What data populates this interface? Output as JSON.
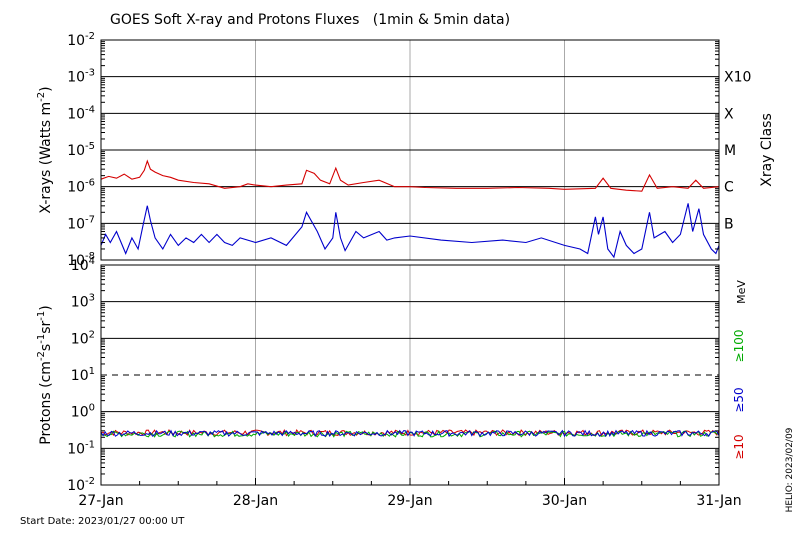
{
  "title": "GOES Soft X-ray and Protons Fluxes   (1min & 5min data)",
  "start_date": "Start Date: 2023/01/27 00:00 UT",
  "stamp": "HELIO: 2023/02/09",
  "chart_data": [
    {
      "type": "line",
      "panel": "xray",
      "ylabel": "X-rays (Watts m^-2)",
      "ylabel_main": "X-rays (Watts m",
      "ylabel_sup": "-2",
      "ylabel_close": ")",
      "yscale": "log",
      "ylim": [
        1e-08,
        0.01
      ],
      "xlim_days": [
        0,
        4
      ],
      "y_ticks": [
        {
          "exp": -2,
          "value": 0.01
        },
        {
          "exp": -3,
          "value": 0.001
        },
        {
          "exp": -4,
          "value": 0.0001
        },
        {
          "exp": -5,
          "value": 1e-05
        },
        {
          "exp": -6,
          "value": 1e-06
        },
        {
          "exp": -7,
          "value": 1e-07
        },
        {
          "exp": -8,
          "value": 1e-08
        }
      ],
      "right_label": "Xray Class",
      "class_labels": [
        {
          "label": "X10",
          "value": 0.001
        },
        {
          "label": "X",
          "value": 0.0001
        },
        {
          "label": "M",
          "value": 1e-05
        },
        {
          "label": "C",
          "value": 1e-06
        },
        {
          "label": "B",
          "value": 1e-07
        }
      ],
      "series": [
        {
          "color": "#d40000",
          "points": [
            [
              0.0,
              1.6e-06
            ],
            [
              0.05,
              1.9e-06
            ],
            [
              0.1,
              1.7e-06
            ],
            [
              0.15,
              2.2e-06
            ],
            [
              0.2,
              1.6e-06
            ],
            [
              0.25,
              1.8e-06
            ],
            [
              0.28,
              2.8e-06
            ],
            [
              0.3,
              5e-06
            ],
            [
              0.32,
              3e-06
            ],
            [
              0.35,
              2.5e-06
            ],
            [
              0.4,
              2e-06
            ],
            [
              0.45,
              1.8e-06
            ],
            [
              0.5,
              1.5e-06
            ],
            [
              0.6,
              1.3e-06
            ],
            [
              0.7,
              1.2e-06
            ],
            [
              0.8,
              9e-07
            ],
            [
              0.9,
              1e-06
            ],
            [
              0.95,
              1.2e-06
            ],
            [
              1.0,
              1.1e-06
            ],
            [
              1.1,
              1e-06
            ],
            [
              1.2,
              1.1e-06
            ],
            [
              1.3,
              1.2e-06
            ],
            [
              1.33,
              2.8e-06
            ],
            [
              1.38,
              2.3e-06
            ],
            [
              1.42,
              1.5e-06
            ],
            [
              1.48,
              1.2e-06
            ],
            [
              1.52,
              3.2e-06
            ],
            [
              1.55,
              1.5e-06
            ],
            [
              1.6,
              1.1e-06
            ],
            [
              1.7,
              1.3e-06
            ],
            [
              1.8,
              1.5e-06
            ],
            [
              1.9,
              1e-06
            ],
            [
              2.0,
              1e-06
            ],
            [
              2.1,
              9.5e-07
            ],
            [
              2.3,
              9e-07
            ],
            [
              2.5,
              9e-07
            ],
            [
              2.7,
              9.5e-07
            ],
            [
              2.9,
              9e-07
            ],
            [
              3.0,
              8.5e-07
            ],
            [
              3.2,
              9e-07
            ],
            [
              3.25,
              1.7e-06
            ],
            [
              3.3,
              9e-07
            ],
            [
              3.4,
              8e-07
            ],
            [
              3.5,
              7.5e-07
            ],
            [
              3.55,
              2.1e-06
            ],
            [
              3.6,
              9e-07
            ],
            [
              3.7,
              1e-06
            ],
            [
              3.8,
              9e-07
            ],
            [
              3.85,
              1.5e-06
            ],
            [
              3.9,
              9e-07
            ],
            [
              4.0,
              1e-06
            ]
          ]
        },
        {
          "color": "#0000cc",
          "points": [
            [
              0.0,
              2.5e-08
            ],
            [
              0.03,
              5e-08
            ],
            [
              0.06,
              3e-08
            ],
            [
              0.1,
              6e-08
            ],
            [
              0.13,
              3e-08
            ],
            [
              0.16,
              1.5e-08
            ],
            [
              0.2,
              4e-08
            ],
            [
              0.24,
              2e-08
            ],
            [
              0.27,
              8e-08
            ],
            [
              0.3,
              3e-07
            ],
            [
              0.32,
              1.2e-07
            ],
            [
              0.35,
              4e-08
            ],
            [
              0.4,
              2e-08
            ],
            [
              0.45,
              5e-08
            ],
            [
              0.5,
              2.5e-08
            ],
            [
              0.55,
              4e-08
            ],
            [
              0.6,
              3e-08
            ],
            [
              0.65,
              5e-08
            ],
            [
              0.7,
              3e-08
            ],
            [
              0.75,
              5e-08
            ],
            [
              0.8,
              3e-08
            ],
            [
              0.85,
              2.5e-08
            ],
            [
              0.9,
              4e-08
            ],
            [
              1.0,
              3e-08
            ],
            [
              1.1,
              4e-08
            ],
            [
              1.2,
              2.5e-08
            ],
            [
              1.3,
              8e-08
            ],
            [
              1.33,
              2e-07
            ],
            [
              1.4,
              6e-08
            ],
            [
              1.45,
              2e-08
            ],
            [
              1.5,
              4e-08
            ],
            [
              1.52,
              2e-07
            ],
            [
              1.55,
              4e-08
            ],
            [
              1.58,
              1.8e-08
            ],
            [
              1.65,
              6e-08
            ],
            [
              1.7,
              4e-08
            ],
            [
              1.8,
              6e-08
            ],
            [
              1.85,
              3.5e-08
            ],
            [
              1.9,
              4e-08
            ],
            [
              2.0,
              4.5e-08
            ],
            [
              2.2,
              3.5e-08
            ],
            [
              2.4,
              3e-08
            ],
            [
              2.6,
              3.5e-08
            ],
            [
              2.75,
              3e-08
            ],
            [
              2.85,
              4e-08
            ],
            [
              3.0,
              2.5e-08
            ],
            [
              3.1,
              2e-08
            ],
            [
              3.15,
              1.5e-08
            ],
            [
              3.2,
              1.5e-07
            ],
            [
              3.22,
              5e-08
            ],
            [
              3.25,
              1.5e-07
            ],
            [
              3.28,
              2e-08
            ],
            [
              3.32,
              1.2e-08
            ],
            [
              3.36,
              6e-08
            ],
            [
              3.4,
              2.5e-08
            ],
            [
              3.45,
              1.5e-08
            ],
            [
              3.5,
              2e-08
            ],
            [
              3.55,
              2e-07
            ],
            [
              3.58,
              4e-08
            ],
            [
              3.65,
              6e-08
            ],
            [
              3.7,
              3e-08
            ],
            [
              3.75,
              5e-08
            ],
            [
              3.8,
              3.5e-07
            ],
            [
              3.83,
              6e-08
            ],
            [
              3.87,
              2.5e-07
            ],
            [
              3.9,
              5e-08
            ],
            [
              3.95,
              2e-08
            ],
            [
              3.98,
              1.5e-08
            ],
            [
              4.0,
              2.5e-08
            ]
          ]
        }
      ]
    },
    {
      "type": "line",
      "panel": "protons",
      "ylabel": "Protons (cm^-2 s^-1 sr^-1)",
      "ylabel_main": "Protons (cm",
      "ylabel_sup1": "-2",
      "ylabel_mid1": "s",
      "ylabel_sup2": "-1",
      "ylabel_mid2": "sr",
      "ylabel_sup3": "-1",
      "ylabel_close": ")",
      "yscale": "log",
      "ylim": [
        0.01,
        10000
      ],
      "xlim_days": [
        0,
        4
      ],
      "y_ticks": [
        {
          "base": "10",
          "exp": "4",
          "value": 10000
        },
        {
          "base": "10",
          "exp": "3",
          "value": 1000
        },
        {
          "base": "10",
          "exp": "2",
          "value": 100
        },
        {
          "base": "10",
          "exp": "1",
          "value": 10
        },
        {
          "base": "10",
          "exp": "0",
          "value": 1
        },
        {
          "base": "10",
          "exp": "-1",
          "value": 0.1
        },
        {
          "base": "10",
          "exp": "-2",
          "value": 0.01
        }
      ],
      "threshold_line": 10,
      "unit_label": "MeV",
      "legend": [
        {
          "name": "≥100",
          "color": "#00aa00"
        },
        {
          "name": "≥50",
          "color": "#0000cc"
        },
        {
          "name": "≥10",
          "color": "#d40000"
        }
      ],
      "series": [
        {
          "name": "≥10",
          "color": "#d40000",
          "level": 0.27
        },
        {
          "name": "≥100",
          "color": "#00aa00",
          "level": 0.25
        },
        {
          "name": "≥50",
          "color": "#0000cc",
          "level": 0.26
        }
      ],
      "x_tick_labels": [
        {
          "label": "27-Jan",
          "day": 0
        },
        {
          "label": "28-Jan",
          "day": 1
        },
        {
          "label": "29-Jan",
          "day": 2
        },
        {
          "label": "30-Jan",
          "day": 3
        },
        {
          "label": "31-Jan",
          "day": 4
        }
      ]
    }
  ]
}
